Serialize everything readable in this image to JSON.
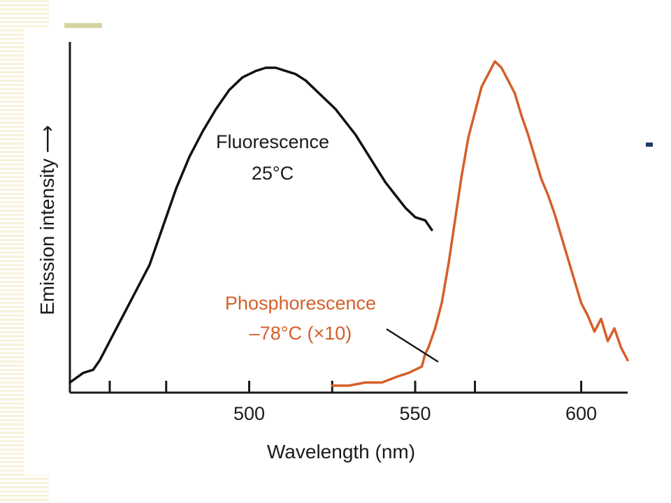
{
  "chart_data": {
    "type": "line",
    "xlabel": "Wavelength (nm)",
    "ylabel": "Emission intensity ⟶",
    "xlim": [
      446,
      614
    ],
    "ylim": [
      0,
      1
    ],
    "x_ticks": [
      458,
      475,
      500,
      525,
      550,
      568,
      600
    ],
    "x_tick_labels": [
      "",
      "",
      "500",
      "",
      "550",
      "",
      "600"
    ],
    "grid": false,
    "series": [
      {
        "name": "Fluorescence 25°C",
        "color": "#111111",
        "x": [
          446,
          450,
          453,
          455,
          458,
          462,
          466,
          470,
          474,
          478,
          482,
          486,
          490,
          494,
          498,
          502,
          505,
          508,
          511,
          514,
          517,
          520,
          523,
          526,
          529,
          532,
          535,
          538,
          541,
          544,
          547,
          550,
          553,
          555
        ],
        "y": [
          0.01,
          0.04,
          0.05,
          0.08,
          0.14,
          0.22,
          0.3,
          0.38,
          0.5,
          0.62,
          0.72,
          0.8,
          0.87,
          0.93,
          0.97,
          0.99,
          1.0,
          1.0,
          0.99,
          0.98,
          0.96,
          0.93,
          0.9,
          0.87,
          0.83,
          0.79,
          0.74,
          0.69,
          0.64,
          0.6,
          0.56,
          0.53,
          0.52,
          0.49
        ]
      },
      {
        "name": "Phosphorescence –78°C (×10)",
        "color": "#d45f2a",
        "x": [
          525,
          530,
          535,
          540,
          545,
          548,
          550,
          552,
          553,
          554,
          556,
          558,
          560,
          562,
          564,
          566,
          568,
          570,
          572,
          574,
          576,
          578,
          580,
          582,
          584,
          586,
          588,
          590,
          592,
          594,
          596,
          598,
          600,
          602,
          604,
          606,
          608,
          610,
          612,
          614
        ],
        "y": [
          0.0,
          0.0,
          0.01,
          0.01,
          0.03,
          0.04,
          0.05,
          0.06,
          0.1,
          0.12,
          0.18,
          0.26,
          0.38,
          0.52,
          0.66,
          0.78,
          0.86,
          0.94,
          0.98,
          1.02,
          1.0,
          0.96,
          0.92,
          0.85,
          0.79,
          0.72,
          0.65,
          0.6,
          0.54,
          0.47,
          0.4,
          0.33,
          0.26,
          0.22,
          0.17,
          0.21,
          0.14,
          0.18,
          0.12,
          0.08
        ]
      }
    ],
    "annotations": {
      "fluorescence_line1": "Fluorescence",
      "fluorescence_line2": "25°C",
      "phosphorescence_line1": "Phosphorescence",
      "phosphorescence_line2": "–78°C (×10)"
    }
  }
}
